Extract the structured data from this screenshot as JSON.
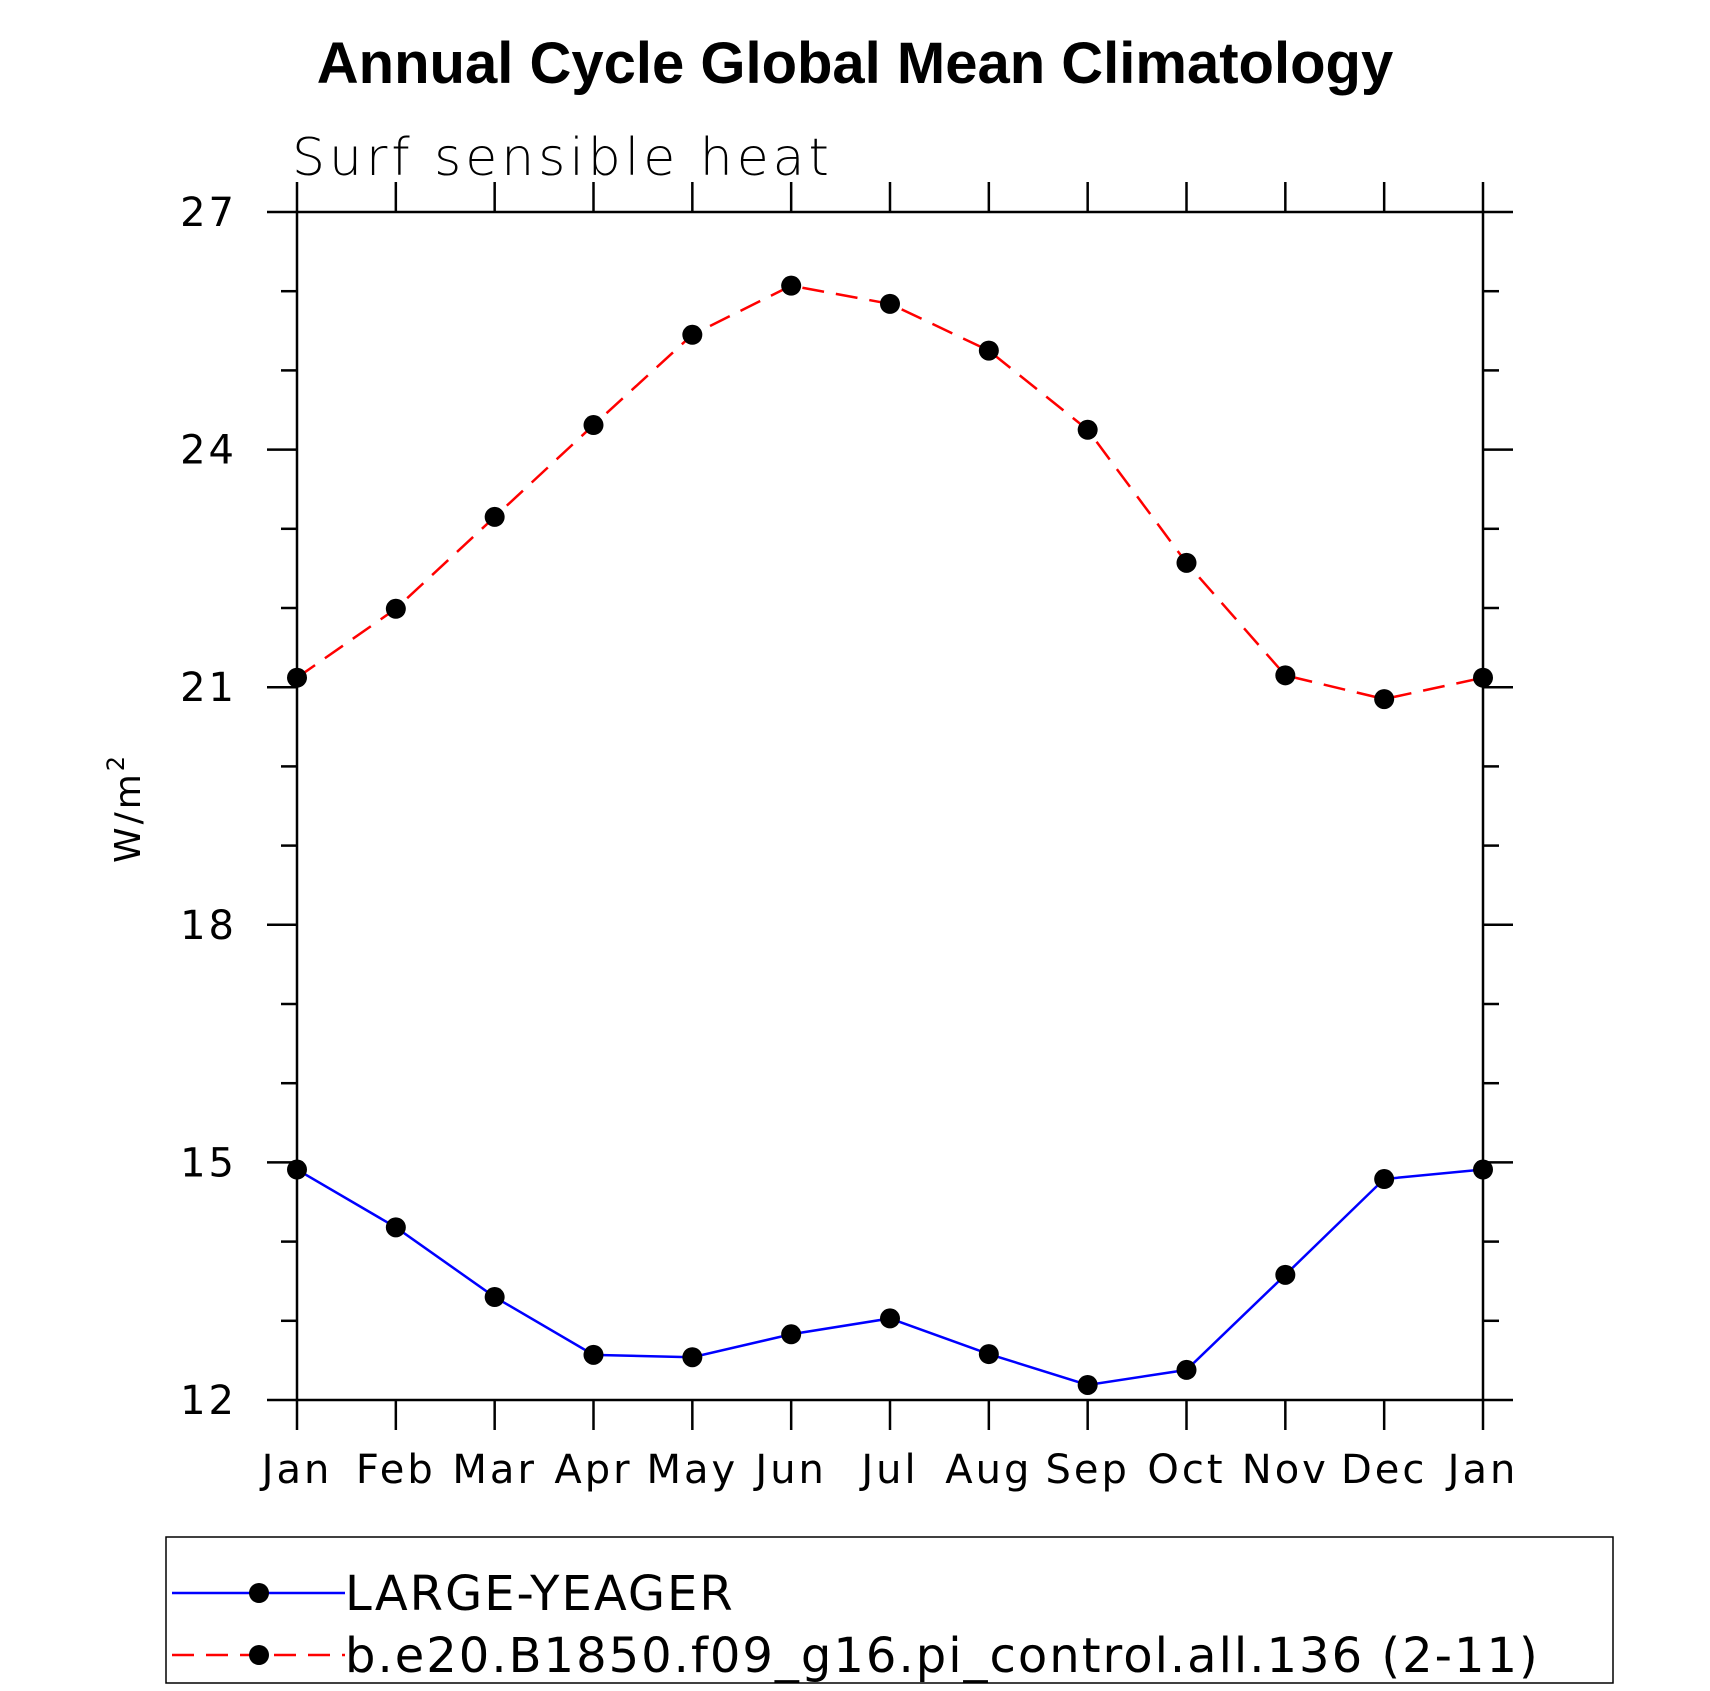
{
  "chart_data": {
    "type": "line",
    "title": "Annual Cycle Global Mean Climatology",
    "subtitle": "Surf sensible heat",
    "ylabel": "W/m",
    "ylabel_superscript": "2",
    "xlabel": "",
    "categories": [
      "Jan",
      "Feb",
      "Mar",
      "Apr",
      "May",
      "Jun",
      "Jul",
      "Aug",
      "Sep",
      "Oct",
      "Nov",
      "Dec",
      "Jan"
    ],
    "ylim": [
      12,
      27
    ],
    "yticks": [
      "12",
      "15",
      "18",
      "21",
      "24",
      "27"
    ],
    "grid": false,
    "legend_position": "bottom",
    "series": [
      {
        "name": "LARGE-YEAGER",
        "color": "#0000ff",
        "line_style": "solid",
        "marker": "filled-circle",
        "values": [
          14.91,
          14.18,
          13.3,
          12.57,
          12.54,
          12.83,
          13.03,
          12.58,
          12.19,
          12.38,
          13.58,
          14.79,
          14.91
        ]
      },
      {
        "name": "b.e20.B1850.f09_g16.pi_control.all.136 (2-11)",
        "color": "#ff0000",
        "line_style": "dashed",
        "marker": "filled-circle",
        "values": [
          21.12,
          21.99,
          23.15,
          24.31,
          25.45,
          26.07,
          25.84,
          25.25,
          24.25,
          22.57,
          21.15,
          20.85,
          21.12
        ]
      }
    ]
  }
}
